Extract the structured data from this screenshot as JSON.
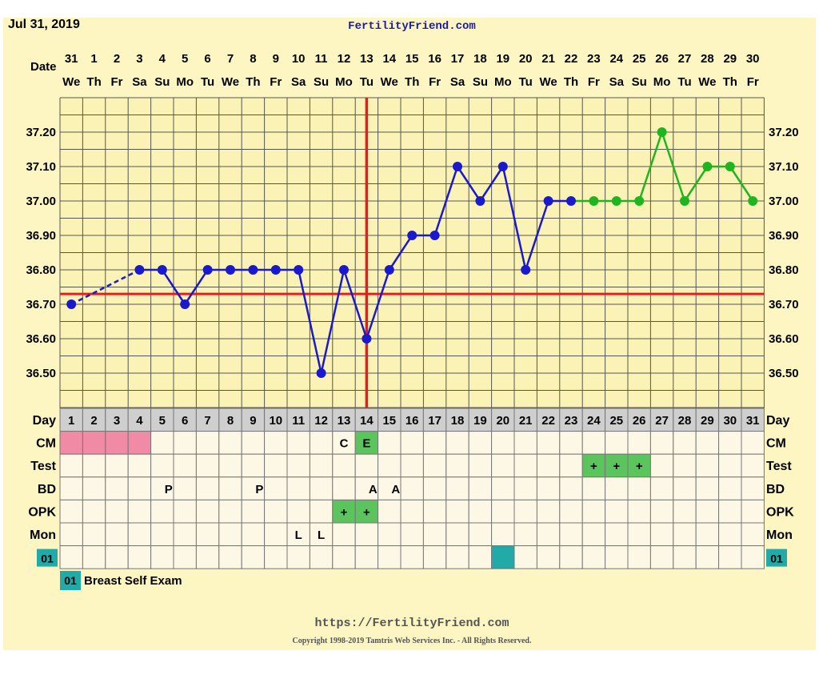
{
  "header": {
    "date": "Jul 31, 2019",
    "site": "FertilityFriend.com"
  },
  "footer": {
    "url": "https://FertilityFriend.com",
    "copyright": "Copyright 1998-2019 Tamtris Web Services Inc. - All Rights Reserved."
  },
  "labels": {
    "date": "Date",
    "day": "Day",
    "cm": "CM",
    "test": "Test",
    "bd": "BD",
    "opk": "OPK",
    "mon": "Mon",
    "custom_code": "01",
    "legend_text": "Breast Self Exam"
  },
  "colors": {
    "background": "#fdf6c3",
    "pre_line": "#1a1acc",
    "post_line": "#1fb51f",
    "coverline": "#e02020",
    "ovulation_line": "#e02020",
    "cm_period": "#f08aa5",
    "green_cell": "#5cc45c",
    "custom_teal": "#22aaa8",
    "grid_header": "#cfcfcf"
  },
  "chart_data": {
    "type": "line",
    "dates": [
      "31",
      "1",
      "2",
      "3",
      "4",
      "5",
      "6",
      "7",
      "8",
      "9",
      "10",
      "11",
      "12",
      "13",
      "14",
      "15",
      "16",
      "17",
      "18",
      "19",
      "20",
      "21",
      "22",
      "23",
      "24",
      "25",
      "26",
      "27",
      "28",
      "29",
      "30"
    ],
    "weekdays": [
      "We",
      "Th",
      "Fr",
      "Sa",
      "Su",
      "Mo",
      "Tu",
      "We",
      "Th",
      "Fr",
      "Sa",
      "Su",
      "Mo",
      "Tu",
      "We",
      "Th",
      "Fr",
      "Sa",
      "Su",
      "Mo",
      "Tu",
      "We",
      "Th",
      "Fr",
      "Sa",
      "Su",
      "Mo",
      "Tu",
      "We",
      "Th",
      "Fr"
    ],
    "cycle_days": [
      1,
      2,
      3,
      4,
      5,
      6,
      7,
      8,
      9,
      10,
      11,
      12,
      13,
      14,
      15,
      16,
      17,
      18,
      19,
      20,
      21,
      22,
      23,
      24,
      25,
      26,
      27,
      28,
      29,
      30,
      31
    ],
    "y_ticks": [
      "37.20",
      "37.10",
      "37.00",
      "36.90",
      "36.80",
      "36.70",
      "36.60",
      "36.50"
    ],
    "y_range": [
      36.4,
      37.3
    ],
    "temps": [
      36.7,
      null,
      null,
      36.8,
      36.8,
      36.7,
      36.8,
      36.8,
      36.8,
      36.8,
      36.8,
      36.5,
      36.8,
      36.6,
      36.8,
      36.9,
      36.9,
      37.1,
      37.0,
      37.1,
      36.8,
      37.0,
      37.0,
      37.0,
      37.0,
      37.0,
      37.2,
      37.0,
      37.1,
      37.1,
      37.0
    ],
    "dashed_segments": [
      [
        1,
        4
      ]
    ],
    "post_start_day": 23,
    "coverline": 36.73,
    "ovulation_day": 14,
    "grid": true,
    "rows": {
      "cm": {
        "period_days": [
          1,
          2,
          3,
          4
        ],
        "text": {
          "13": "C",
          "14": "E"
        },
        "green_days": [
          14
        ]
      },
      "test": {
        "text": {
          "24": "+",
          "25": "+",
          "26": "+"
        },
        "green_days": [
          24,
          25,
          26
        ]
      },
      "bd": {
        "text": {
          "5": "PM",
          "9": "PM",
          "14": "AM",
          "15": "AM"
        },
        "green_days": []
      },
      "opk": {
        "text": {
          "13": "+",
          "14": "+"
        },
        "green_days": [
          13,
          14
        ]
      },
      "mon": {
        "text": {
          "11": "L",
          "12": "L"
        },
        "green_days": []
      },
      "custom": {
        "teal_days": [
          20
        ]
      }
    }
  }
}
